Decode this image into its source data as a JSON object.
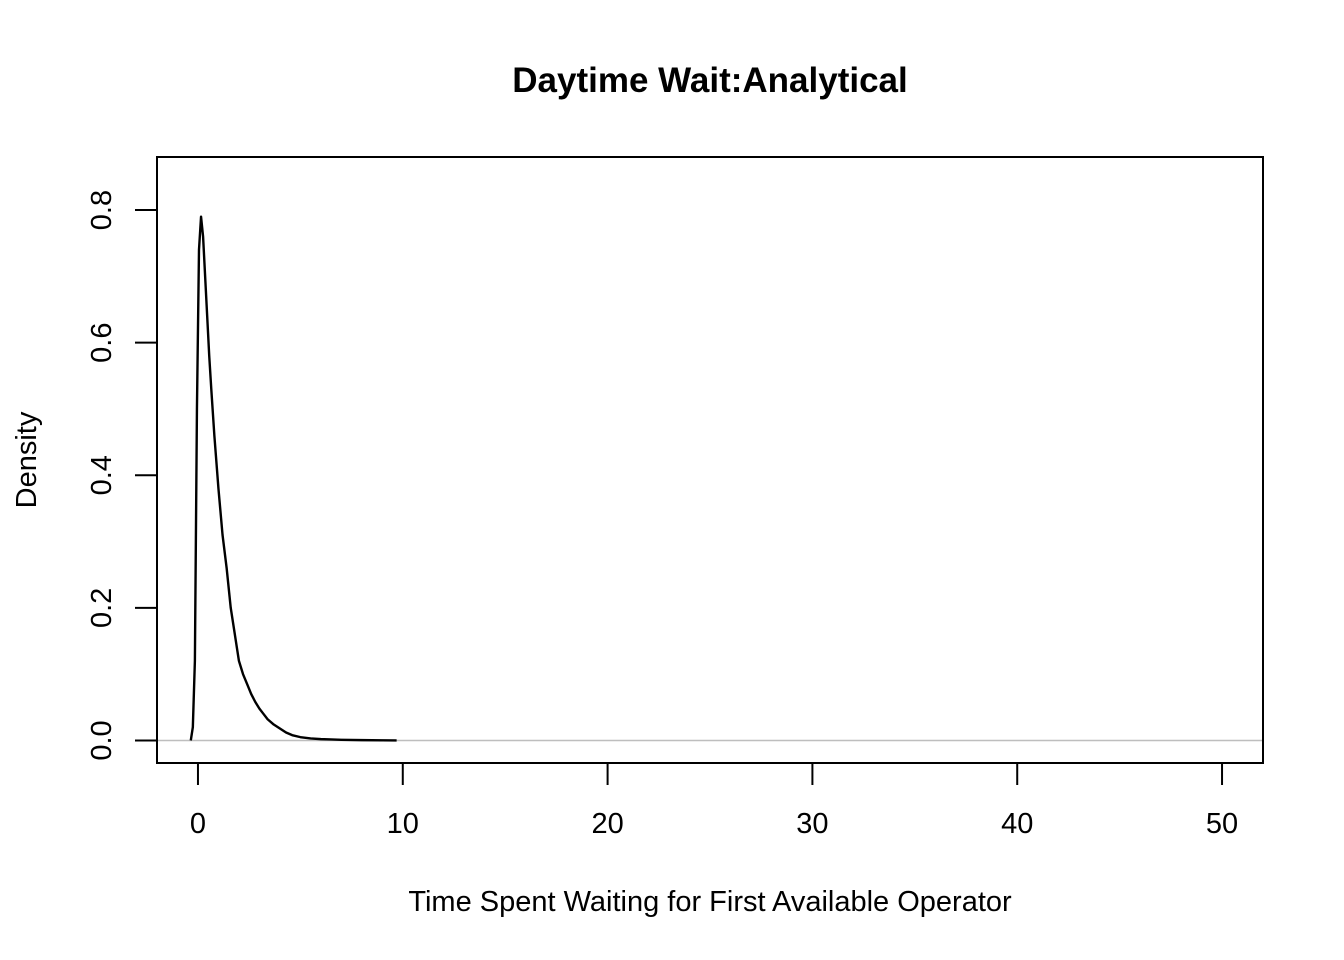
{
  "chart_data": {
    "type": "line",
    "title": "Daytime Wait:Analytical",
    "xlabel": "Time Spent Waiting for First Available Operator",
    "ylabel": "Density",
    "xlim": [
      -2,
      52
    ],
    "ylim": [
      -0.034,
      0.88
    ],
    "xticks": [
      0,
      10,
      20,
      30,
      40,
      50
    ],
    "xtick_labels": [
      "0",
      "10",
      "20",
      "30",
      "40",
      "50"
    ],
    "yticks": [
      0.0,
      0.2,
      0.4,
      0.6,
      0.8
    ],
    "ytick_labels": [
      "0.0",
      "0.2",
      "0.4",
      "0.6",
      "0.8"
    ],
    "baseline": 0,
    "baseline_color": "#bebebe",
    "line_color": "#000000",
    "grid": false,
    "series": [
      {
        "x": [
          -0.35,
          -0.25,
          -0.15,
          -0.05,
          0.05,
          0.15,
          0.25,
          0.35,
          0.45,
          0.55,
          0.65,
          0.8,
          1.0,
          1.2,
          1.4,
          1.6,
          1.8,
          2.0,
          2.2,
          2.4,
          2.6,
          2.8,
          3.0,
          3.2,
          3.4,
          3.7,
          4.0,
          4.3,
          4.6,
          5.0,
          5.5,
          6.0,
          6.5,
          7.0,
          8.0,
          9.0,
          9.7
        ],
        "y": [
          0.0,
          0.02,
          0.12,
          0.5,
          0.74,
          0.79,
          0.76,
          0.7,
          0.64,
          0.58,
          0.53,
          0.46,
          0.38,
          0.31,
          0.26,
          0.2,
          0.16,
          0.12,
          0.1,
          0.085,
          0.07,
          0.058,
          0.048,
          0.04,
          0.032,
          0.024,
          0.018,
          0.012,
          0.008,
          0.005,
          0.003,
          0.002,
          0.0015,
          0.001,
          0.0005,
          0.0002,
          0.0001
        ]
      }
    ]
  }
}
